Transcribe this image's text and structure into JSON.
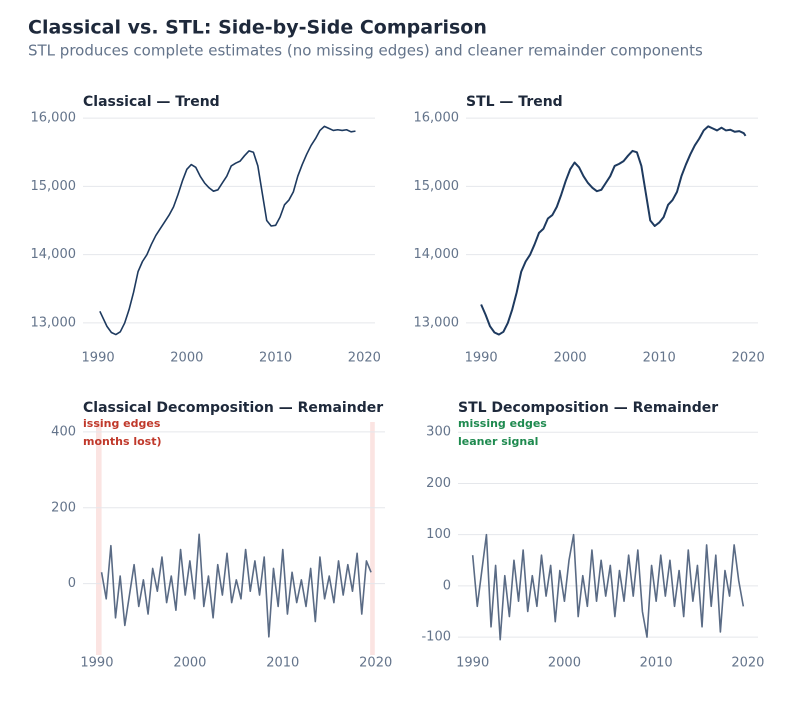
{
  "title": "Classical vs. STL: Side-by-Side Comparison",
  "subtitle": "STL produces complete estimates (no missing edges) and cleaner remainder components",
  "chart_data": [
    {
      "type": "line",
      "title": "Classical — Trend",
      "color": "#1e3a5f",
      "grid": true,
      "xlim": [
        1988.3,
        2021.2
      ],
      "ylim": [
        12750,
        16090
      ],
      "xticks": [
        1990,
        2000,
        2010,
        2020
      ],
      "yticks": [
        {
          "value": 13000,
          "label": "13,000"
        },
        {
          "value": 14000,
          "label": "14,000"
        },
        {
          "value": 15000,
          "label": "15,000"
        },
        {
          "value": 16000,
          "label": "16,000"
        }
      ],
      "x": [
        1990.2,
        1991,
        1991.5,
        1992,
        1992.5,
        1993,
        1993.5,
        1994,
        1994.5,
        1995,
        1995.5,
        1996,
        1996.5,
        1997,
        1997.5,
        1998,
        1998.5,
        1999,
        1999.5,
        2000,
        2000.5,
        2001,
        2001.5,
        2002,
        2002.5,
        2003,
        2003.5,
        2004,
        2004.5,
        2005,
        2005.5,
        2006,
        2006.5,
        2007,
        2007.5,
        2008,
        2008.5,
        2009,
        2009.5,
        2010,
        2010.5,
        2011,
        2011.5,
        2012,
        2012.5,
        2013,
        2013.5,
        2014,
        2014.5,
        2015,
        2015.5,
        2016,
        2016.5,
        2017,
        2017.5,
        2018,
        2018.5,
        2019
      ],
      "values": [
        13170,
        12950,
        12860,
        12830,
        12870,
        13000,
        13200,
        13450,
        13750,
        13900,
        14000,
        14150,
        14280,
        14380,
        14480,
        14580,
        14700,
        14880,
        15080,
        15250,
        15320,
        15280,
        15150,
        15050,
        14980,
        14930,
        14950,
        15050,
        15150,
        15300,
        15340,
        15370,
        15450,
        15520,
        15500,
        15300,
        14900,
        14500,
        14420,
        14430,
        14550,
        14730,
        14800,
        14920,
        15150,
        15320,
        15470,
        15600,
        15700,
        15820,
        15880,
        15850,
        15820,
        15830,
        15820,
        15830,
        15800,
        15810
      ]
    },
    {
      "type": "line",
      "title": "STL — Trend",
      "color": "#1e3a5f",
      "grid": true,
      "xlim": [
        1988.3,
        2021.1
      ],
      "ylim": [
        12750,
        16090
      ],
      "xticks": [
        1990,
        2000,
        2010,
        2020
      ],
      "yticks": [
        {
          "value": 13000,
          "label": "13,000"
        },
        {
          "value": 14000,
          "label": "14,000"
        },
        {
          "value": 15000,
          "label": "15,000"
        },
        {
          "value": 16000,
          "label": "16,000"
        }
      ],
      "x": [
        1990,
        1990.5,
        1991,
        1991.5,
        1992,
        1992.5,
        1993,
        1993.5,
        1994,
        1994.5,
        1995,
        1995.5,
        1996,
        1996.5,
        1997,
        1997.5,
        1998,
        1998.5,
        1999,
        1999.5,
        2000,
        2000.5,
        2001,
        2001.5,
        2002,
        2002.5,
        2003,
        2003.5,
        2004,
        2004.5,
        2005,
        2005.5,
        2006,
        2006.5,
        2007,
        2007.5,
        2008,
        2008.5,
        2009,
        2009.5,
        2010,
        2010.5,
        2011,
        2011.5,
        2012,
        2012.5,
        2013,
        2013.5,
        2014,
        2014.5,
        2015,
        2015.5,
        2016,
        2016.5,
        2017,
        2017.5,
        2018,
        2018.5,
        2019,
        2019.5,
        2019.7
      ],
      "values": [
        13270,
        13120,
        12950,
        12860,
        12830,
        12870,
        13000,
        13200,
        13450,
        13750,
        13900,
        14000,
        14150,
        14320,
        14380,
        14530,
        14580,
        14700,
        14880,
        15080,
        15250,
        15350,
        15280,
        15150,
        15050,
        14980,
        14930,
        14950,
        15050,
        15150,
        15300,
        15330,
        15370,
        15450,
        15520,
        15500,
        15300,
        14900,
        14500,
        14420,
        14470,
        14550,
        14730,
        14800,
        14920,
        15150,
        15320,
        15470,
        15600,
        15700,
        15820,
        15880,
        15850,
        15820,
        15860,
        15820,
        15830,
        15800,
        15810,
        15780,
        15740
      ]
    },
    {
      "type": "line",
      "title": "Classical Decomposition — Remainder",
      "color": "#5a6b85",
      "grid": true,
      "xlim": [
        1988.5,
        2021
      ],
      "ylim": [
        -188,
        426
      ],
      "xticks": [
        1990,
        2000,
        2010,
        2020
      ],
      "yticks": [
        0,
        200,
        400
      ],
      "shaded_regions": [
        [
          1989.9,
          1990.5
        ],
        [
          2019.4,
          2019.9
        ]
      ],
      "shade_color": "#e74c3c",
      "annotations": [
        {
          "text": "issing edges",
          "color": "#c0392b"
        },
        {
          "text": "months lost)",
          "color": "#c0392b"
        }
      ],
      "x": [
        1990.5,
        1991,
        1991.5,
        1992,
        1992.5,
        1993,
        1993.5,
        1994,
        1994.5,
        1995,
        1995.5,
        1996,
        1996.5,
        1997,
        1997.5,
        1998,
        1998.5,
        1999,
        1999.5,
        2000,
        2000.5,
        2001,
        2001.5,
        2002,
        2002.5,
        2003,
        2003.5,
        2004,
        2004.5,
        2005,
        2005.5,
        2006,
        2006.5,
        2007,
        2007.5,
        2008,
        2008.5,
        2009,
        2009.5,
        2010,
        2010.5,
        2011,
        2011.5,
        2012,
        2012.5,
        2013,
        2013.5,
        2014,
        2014.5,
        2015,
        2015.5,
        2016,
        2016.5,
        2017,
        2017.5,
        2018,
        2018.5,
        2019,
        2019.5
      ],
      "values": [
        30,
        -40,
        100,
        -90,
        20,
        -110,
        -30,
        50,
        -60,
        10,
        -80,
        40,
        -20,
        70,
        -50,
        20,
        -70,
        90,
        -30,
        60,
        -40,
        130,
        -60,
        20,
        -90,
        50,
        -30,
        80,
        -50,
        10,
        -40,
        90,
        -20,
        60,
        -30,
        70,
        -140,
        40,
        -60,
        90,
        -80,
        30,
        -50,
        10,
        -60,
        40,
        -100,
        70,
        -40,
        20,
        -50,
        60,
        -30,
        50,
        -20,
        80,
        -80,
        60,
        30
      ]
    },
    {
      "type": "line",
      "title": "STL Decomposition — Remainder",
      "color": "#5a6b85",
      "grid": true,
      "xlim": [
        1988.4,
        2021.1
      ],
      "ylim": [
        -135,
        320
      ],
      "xticks": [
        1990,
        2000,
        2010,
        2020
      ],
      "yticks": [
        -100,
        0,
        100,
        200,
        300
      ],
      "annotations": [
        {
          "text": "missing edges",
          "color": "#1e8a4f"
        },
        {
          "text": "leaner signal",
          "color": "#1e8a4f"
        }
      ],
      "x": [
        1990,
        1990.5,
        1991,
        1991.5,
        1992,
        1992.5,
        1993,
        1993.5,
        1994,
        1994.5,
        1995,
        1995.5,
        1996,
        1996.5,
        1997,
        1997.5,
        1998,
        1998.5,
        1999,
        1999.5,
        2000,
        2000.5,
        2001,
        2001.5,
        2002,
        2002.5,
        2003,
        2003.5,
        2004,
        2004.5,
        2005,
        2005.5,
        2006,
        2006.5,
        2007,
        2007.5,
        2008,
        2008.5,
        2009,
        2009.5,
        2010,
        2010.5,
        2011,
        2011.5,
        2012,
        2012.5,
        2013,
        2013.5,
        2014,
        2014.5,
        2015,
        2015.5,
        2016,
        2016.5,
        2017,
        2017.5,
        2018,
        2018.5,
        2019,
        2019.5
      ],
      "values": [
        60,
        -40,
        30,
        100,
        -80,
        40,
        -105,
        20,
        -60,
        50,
        -30,
        70,
        -50,
        20,
        -40,
        60,
        -20,
        40,
        -70,
        30,
        -30,
        50,
        100,
        -60,
        20,
        -40,
        70,
        -30,
        50,
        -20,
        40,
        -60,
        30,
        -30,
        60,
        -20,
        70,
        -50,
        -100,
        40,
        -30,
        60,
        -20,
        50,
        -40,
        30,
        -60,
        70,
        -30,
        40,
        -80,
        80,
        -40,
        60,
        -90,
        30,
        -20,
        80,
        10,
        -40
      ]
    }
  ]
}
